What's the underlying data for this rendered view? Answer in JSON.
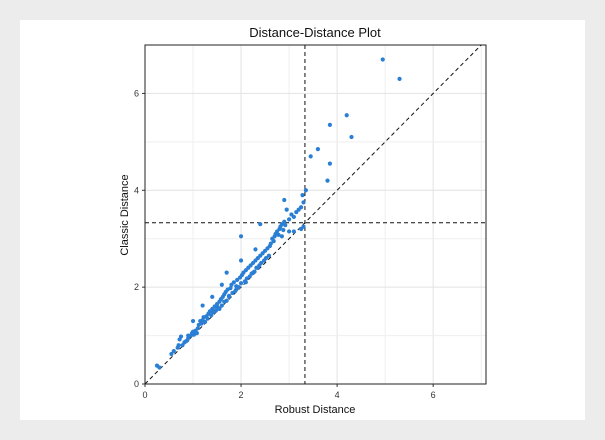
{
  "chart_data": {
    "type": "scatter",
    "title": "Distance-Distance Plot",
    "xlabel": "Robust Distance",
    "ylabel": "Classic Distance",
    "xlim": [
      0,
      7.1
    ],
    "ylim": [
      0,
      7.0
    ],
    "xticks": [
      0,
      2,
      4,
      6
    ],
    "yticks": [
      0,
      2,
      4,
      6
    ],
    "grid": true,
    "point_color": "#2a7fd4",
    "cutoff_x": 3.33,
    "cutoff_y": 3.33,
    "reference_line": "y=x",
    "points": [
      [
        0.25,
        0.38
      ],
      [
        0.3,
        0.34
      ],
      [
        0.55,
        0.62
      ],
      [
        0.6,
        0.68
      ],
      [
        0.68,
        0.75
      ],
      [
        0.72,
        0.92
      ],
      [
        0.75,
        0.98
      ],
      [
        0.78,
        0.8
      ],
      [
        0.82,
        0.86
      ],
      [
        0.85,
        0.88
      ],
      [
        0.88,
        0.9
      ],
      [
        0.9,
        0.95
      ],
      [
        0.95,
        1.0
      ],
      [
        0.98,
        1.05
      ],
      [
        1.0,
        1.08
      ],
      [
        1.02,
        1.02
      ],
      [
        1.05,
        1.1
      ],
      [
        1.08,
        1.05
      ],
      [
        1.1,
        1.15
      ],
      [
        1.12,
        1.22
      ],
      [
        1.15,
        1.3
      ],
      [
        1.18,
        1.25
      ],
      [
        1.2,
        1.32
      ],
      [
        1.22,
        1.38
      ],
      [
        1.25,
        1.28
      ],
      [
        1.28,
        1.4
      ],
      [
        1.3,
        1.35
      ],
      [
        1.32,
        1.45
      ],
      [
        1.35,
        1.5
      ],
      [
        1.38,
        1.42
      ],
      [
        1.4,
        1.55
      ],
      [
        1.42,
        1.48
      ],
      [
        1.45,
        1.6
      ],
      [
        1.48,
        1.52
      ],
      [
        1.5,
        1.65
      ],
      [
        1.52,
        1.58
      ],
      [
        1.55,
        1.7
      ],
      [
        1.58,
        1.75
      ],
      [
        1.6,
        1.62
      ],
      [
        1.62,
        1.8
      ],
      [
        1.65,
        1.85
      ],
      [
        1.68,
        1.9
      ],
      [
        1.7,
        1.72
      ],
      [
        1.72,
        1.95
      ],
      [
        1.75,
        1.82
      ],
      [
        1.78,
        1.98
      ],
      [
        1.8,
        2.05
      ],
      [
        1.82,
        1.88
      ],
      [
        1.85,
        2.1
      ],
      [
        1.88,
        1.92
      ],
      [
        1.9,
        2.02
      ],
      [
        1.92,
        2.15
      ],
      [
        1.95,
        2.0
      ],
      [
        1.98,
        2.2
      ],
      [
        2.0,
        2.08
      ],
      [
        2.02,
        2.25
      ],
      [
        2.05,
        2.3
      ],
      [
        2.08,
        2.12
      ],
      [
        2.1,
        2.35
      ],
      [
        2.12,
        2.18
      ],
      [
        2.15,
        2.4
      ],
      [
        2.18,
        2.22
      ],
      [
        2.2,
        2.45
      ],
      [
        2.22,
        2.28
      ],
      [
        2.25,
        2.5
      ],
      [
        2.28,
        2.32
      ],
      [
        2.3,
        2.55
      ],
      [
        2.32,
        2.4
      ],
      [
        2.35,
        2.6
      ],
      [
        2.38,
        2.45
      ],
      [
        2.4,
        2.65
      ],
      [
        2.42,
        2.5
      ],
      [
        2.45,
        2.7
      ],
      [
        2.48,
        2.55
      ],
      [
        2.5,
        2.75
      ],
      [
        2.52,
        2.6
      ],
      [
        2.55,
        2.8
      ],
      [
        2.58,
        2.65
      ],
      [
        2.6,
        2.85
      ],
      [
        2.62,
        2.9
      ],
      [
        2.65,
        3.0
      ],
      [
        2.68,
        2.95
      ],
      [
        2.7,
        3.05
      ],
      [
        2.72,
        3.1
      ],
      [
        2.75,
        3.15
      ],
      [
        2.78,
        3.08
      ],
      [
        2.8,
        3.2
      ],
      [
        2.82,
        3.25
      ],
      [
        2.85,
        3.3
      ],
      [
        2.88,
        3.18
      ],
      [
        2.9,
        3.35
      ],
      [
        2.92,
        3.28
      ],
      [
        3.0,
        3.4
      ],
      [
        3.05,
        3.5
      ],
      [
        3.1,
        3.45
      ],
      [
        3.15,
        3.55
      ],
      [
        3.2,
        3.6
      ],
      [
        3.25,
        3.65
      ],
      [
        3.28,
        3.9
      ],
      [
        3.3,
        3.75
      ],
      [
        3.35,
        4.0
      ],
      [
        2.9,
        3.8
      ],
      [
        2.95,
        3.6
      ],
      [
        2.0,
        3.05
      ],
      [
        2.4,
        3.3
      ],
      [
        1.2,
        1.62
      ],
      [
        1.0,
        1.3
      ],
      [
        1.4,
        1.8
      ],
      [
        1.6,
        2.05
      ],
      [
        1.7,
        2.3
      ],
      [
        2.0,
        2.55
      ],
      [
        2.3,
        2.78
      ],
      [
        3.45,
        4.7
      ],
      [
        3.6,
        4.85
      ],
      [
        3.8,
        4.2
      ],
      [
        3.85,
        4.55
      ],
      [
        3.85,
        5.35
      ],
      [
        4.3,
        5.1
      ],
      [
        4.2,
        5.55
      ],
      [
        4.95,
        6.7
      ],
      [
        5.3,
        6.3
      ],
      [
        3.25,
        3.2
      ],
      [
        3.3,
        3.25
      ],
      [
        3.1,
        3.15
      ],
      [
        3.0,
        3.15
      ],
      [
        2.85,
        3.05
      ],
      [
        1.9,
        1.95
      ],
      [
        2.1,
        2.1
      ],
      [
        2.25,
        2.3
      ],
      [
        2.35,
        2.4
      ],
      [
        1.45,
        1.5
      ],
      [
        1.55,
        1.55
      ],
      [
        1.65,
        1.7
      ],
      [
        1.75,
        1.8
      ],
      [
        0.9,
        1.0
      ],
      [
        0.7,
        0.8
      ]
    ]
  }
}
